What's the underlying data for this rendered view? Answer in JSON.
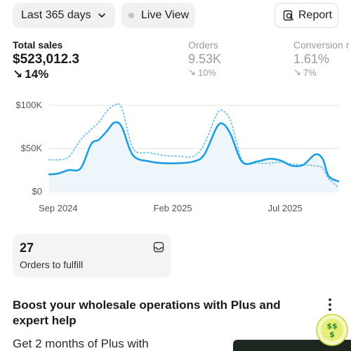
{
  "toolbar": {
    "date_range_label": "Last 365 days",
    "live_view_label": "Live View",
    "report_label": "Report"
  },
  "metrics": [
    {
      "label": "Total sales",
      "value": "$523,012.3",
      "delta": "14%",
      "direction": "down"
    },
    {
      "label": "Orders",
      "value": "9.53K",
      "delta": "10%",
      "direction": "down"
    },
    {
      "label": "Conversion r",
      "value": "1.61%",
      "delta": "7%",
      "direction": "down"
    }
  ],
  "chart_data": {
    "type": "line",
    "title": "",
    "xlabel": "",
    "ylabel": "",
    "ylim": [
      0,
      100000
    ],
    "y_ticks": [
      "$0",
      "$50K",
      "$100K"
    ],
    "x_ticks": [
      "Sep 2024",
      "Feb 2025",
      "Jul 2025"
    ],
    "series": [
      {
        "style": "solid",
        "color": "#1a9fe0",
        "x": [
          "2024-08-20",
          "2024-09-01",
          "2024-09-15",
          "2024-10-01",
          "2024-10-15",
          "2024-10-25",
          "2024-11-05",
          "2024-11-15",
          "2024-11-25",
          "2024-12-10",
          "2025-01-01",
          "2025-01-20",
          "2025-02-10",
          "2025-03-01",
          "2025-03-15",
          "2025-04-01",
          "2025-04-10",
          "2025-04-20",
          "2025-05-05",
          "2025-05-25",
          "2025-06-10",
          "2025-06-25",
          "2025-07-10",
          "2025-07-25",
          "2025-08-10",
          "2025-08-20",
          "2025-08-28",
          "2025-09-10"
        ],
        "values": [
          20000,
          21000,
          25000,
          27000,
          55000,
          60000,
          70000,
          80000,
          75000,
          42000,
          35000,
          33000,
          33000,
          35000,
          43000,
          75000,
          78000,
          65000,
          34000,
          35000,
          38000,
          36000,
          30000,
          31000,
          43000,
          38000,
          18000,
          12000
        ]
      },
      {
        "style": "dotted",
        "color": "#7cc6ec",
        "x": [
          "2024-08-20",
          "2024-09-01",
          "2024-09-15",
          "2024-10-01",
          "2024-10-15",
          "2024-10-25",
          "2024-11-05",
          "2024-11-15",
          "2024-11-25",
          "2024-12-10",
          "2025-01-01",
          "2025-01-20",
          "2025-02-10",
          "2025-03-01",
          "2025-03-15",
          "2025-04-01",
          "2025-04-10",
          "2025-04-20",
          "2025-05-05",
          "2025-05-25",
          "2025-06-10",
          "2025-06-25",
          "2025-07-10",
          "2025-07-25",
          "2025-08-10",
          "2025-08-20",
          "2025-08-28",
          "2025-09-10"
        ],
        "values": [
          37000,
          37000,
          40000,
          60000,
          72000,
          80000,
          93000,
          100000,
          97000,
          50000,
          45000,
          42000,
          41000,
          41000,
          55000,
          90000,
          93000,
          80000,
          36000,
          33000,
          33000,
          34000,
          32000,
          31000,
          30000,
          27000,
          15000,
          5000
        ]
      }
    ]
  },
  "fulfill_card": {
    "count": "27",
    "label": "Orders to fulfill"
  },
  "promo": {
    "title": "Boost your wholesale operations with Plus and expert help",
    "body": "Get 2 months of Plus with"
  },
  "colors": {
    "accent": "#1a9fe0",
    "muted": "#9a9a9a",
    "pill_bg": "#f1f1f1"
  },
  "icons": {
    "date_chevron": "chevron-down-icon",
    "live_dot": "status-dot-icon",
    "report": "report-search-icon",
    "inbox": "inbox-icon",
    "more": "more-vertical-icon",
    "badge": "dollar-badge-icon"
  }
}
